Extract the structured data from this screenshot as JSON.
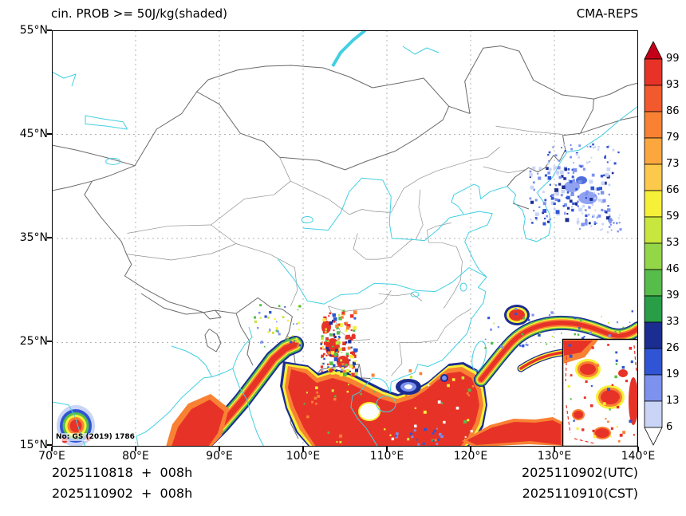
{
  "header": {
    "title": "cin. PROB >= 50J/kg(shaded)",
    "model": "CMA-REPS"
  },
  "axes": {
    "lat": [
      "55°N",
      "45°N",
      "35°N",
      "25°N",
      "15°N"
    ],
    "lon": [
      "70°E",
      "80°E",
      "90°E",
      "100°E",
      "110°E",
      "120°E",
      "130°E",
      "140°E"
    ]
  },
  "colorbar": {
    "labels": [
      "99",
      "93",
      "86",
      "79",
      "73",
      "66",
      "59",
      "53",
      "46",
      "39",
      "33",
      "26",
      "19",
      "13",
      "6"
    ],
    "colors": [
      "#c40018",
      "#e73327",
      "#f25a2d",
      "#f98133",
      "#fca73e",
      "#fdc94d",
      "#f6f038",
      "#c8e63d",
      "#93d648",
      "#56bd4a",
      "#2a9d47",
      "#1c2d91",
      "#2f55d4",
      "#7d92ee",
      "#c9d4f6",
      "#ffffff"
    ]
  },
  "footer": {
    "init_utc": "2025110818  +  008h",
    "init_cst": "2025110902  +  008h",
    "valid_utc": "2025110902(UTC)",
    "valid_cst": "2025110910(CST)"
  },
  "watermark": "No: GS (2019) 1786"
}
